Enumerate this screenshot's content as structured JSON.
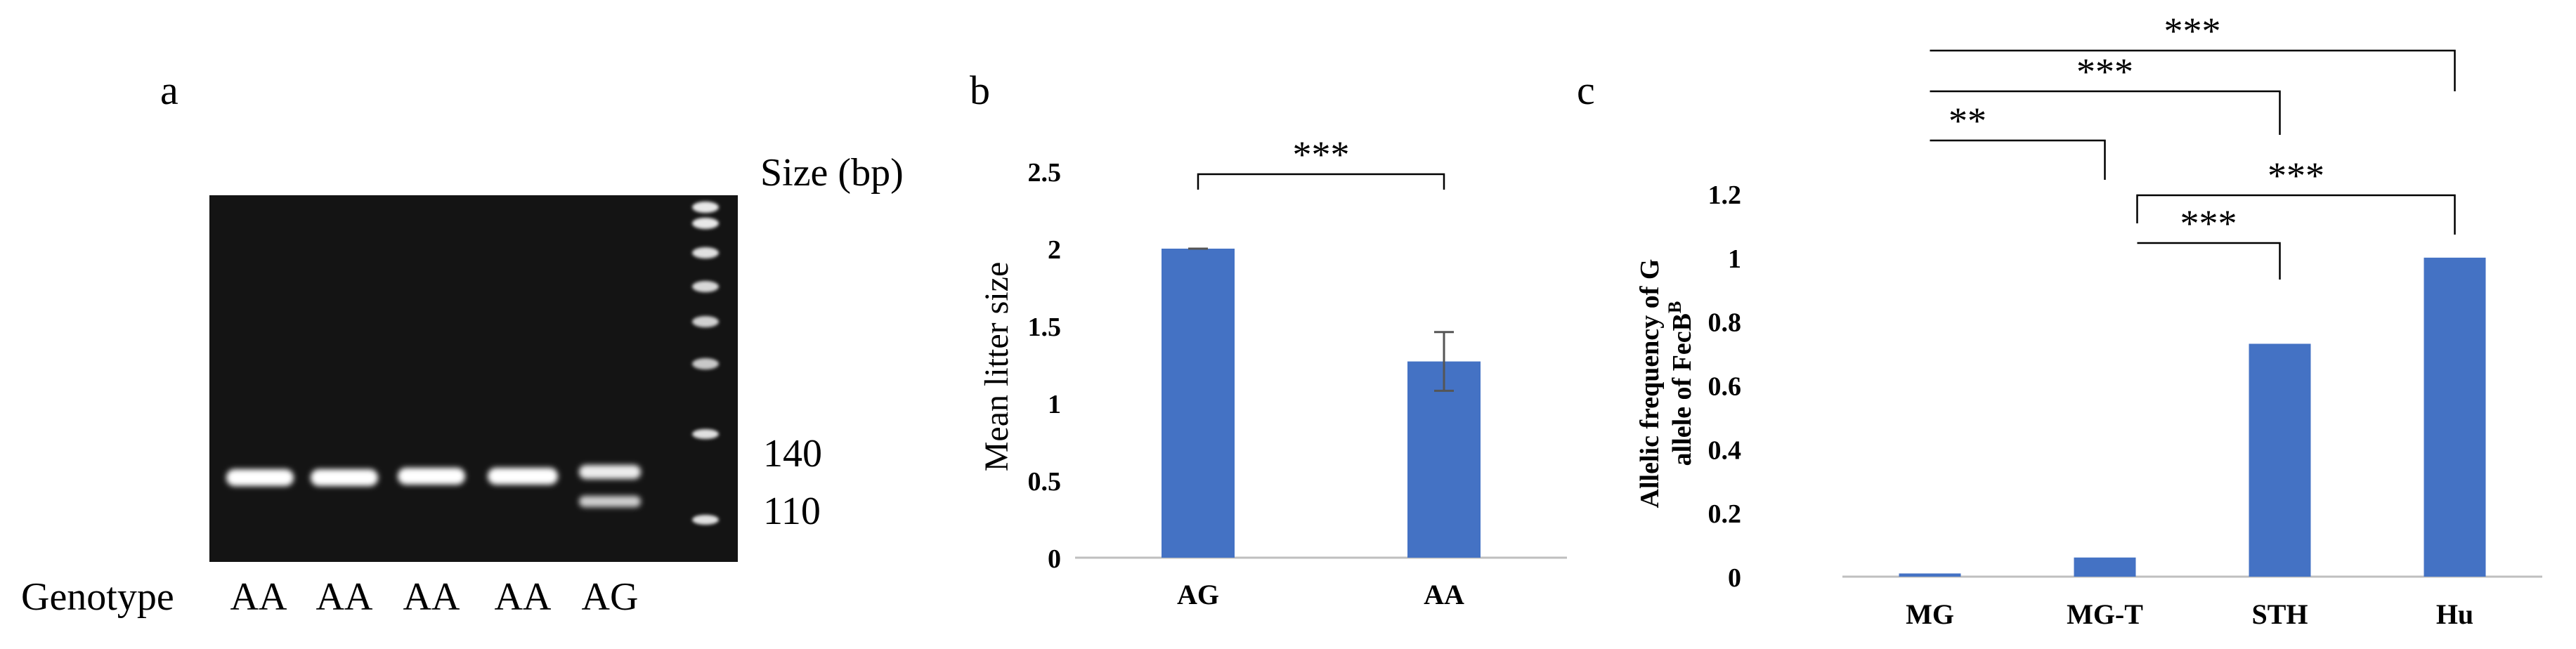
{
  "panels": {
    "a": {
      "label": "a",
      "size_label": "Size (bp)",
      "markers": [
        "140",
        "110"
      ],
      "genotype_label": "Genotype",
      "lanes": [
        "AA",
        "AA",
        "AA",
        "AA",
        "AG"
      ]
    },
    "b": {
      "label": "b"
    },
    "c": {
      "label": "c"
    }
  },
  "chart_data": [
    {
      "id": "b",
      "type": "bar",
      "categories": [
        "AG",
        "AA"
      ],
      "values": [
        2.0,
        1.27
      ],
      "errors": [
        0.0,
        0.19
      ],
      "ylabel": "Mean litter size",
      "ylim": [
        0,
        2.5
      ],
      "ytick_labels": [
        "0",
        "0.5",
        "1",
        "1.5",
        "2",
        "2.5"
      ],
      "bar_color": "#4472c4",
      "significance": [
        {
          "from": "AG",
          "to": "AA",
          "label": "***"
        }
      ]
    },
    {
      "id": "c",
      "type": "bar",
      "categories": [
        "MG",
        "MG-T",
        "STH",
        "Hu"
      ],
      "values": [
        0.01,
        0.06,
        0.73,
        1.0
      ],
      "ylabel_line1": "Allelic  frequency of G",
      "ylabel_line2_main": "allele of FecB",
      "ylabel_line2_sup": "B",
      "ylim": [
        0,
        1.2
      ],
      "ytick_labels": [
        "0",
        "0.2",
        "0.4",
        "0.6",
        "0.8",
        "1",
        "1.2"
      ],
      "bar_color": "#4472c4",
      "significance": [
        {
          "from": "MG",
          "to": "Hu",
          "label": "***"
        },
        {
          "from": "MG",
          "to": "STH",
          "label": "***"
        },
        {
          "from": "MG",
          "to": "MG-T",
          "label": "**"
        },
        {
          "from": "MG-T",
          "to": "Hu",
          "label": "***"
        },
        {
          "from": "MG-T",
          "to": "STH",
          "label": "***"
        }
      ]
    }
  ]
}
